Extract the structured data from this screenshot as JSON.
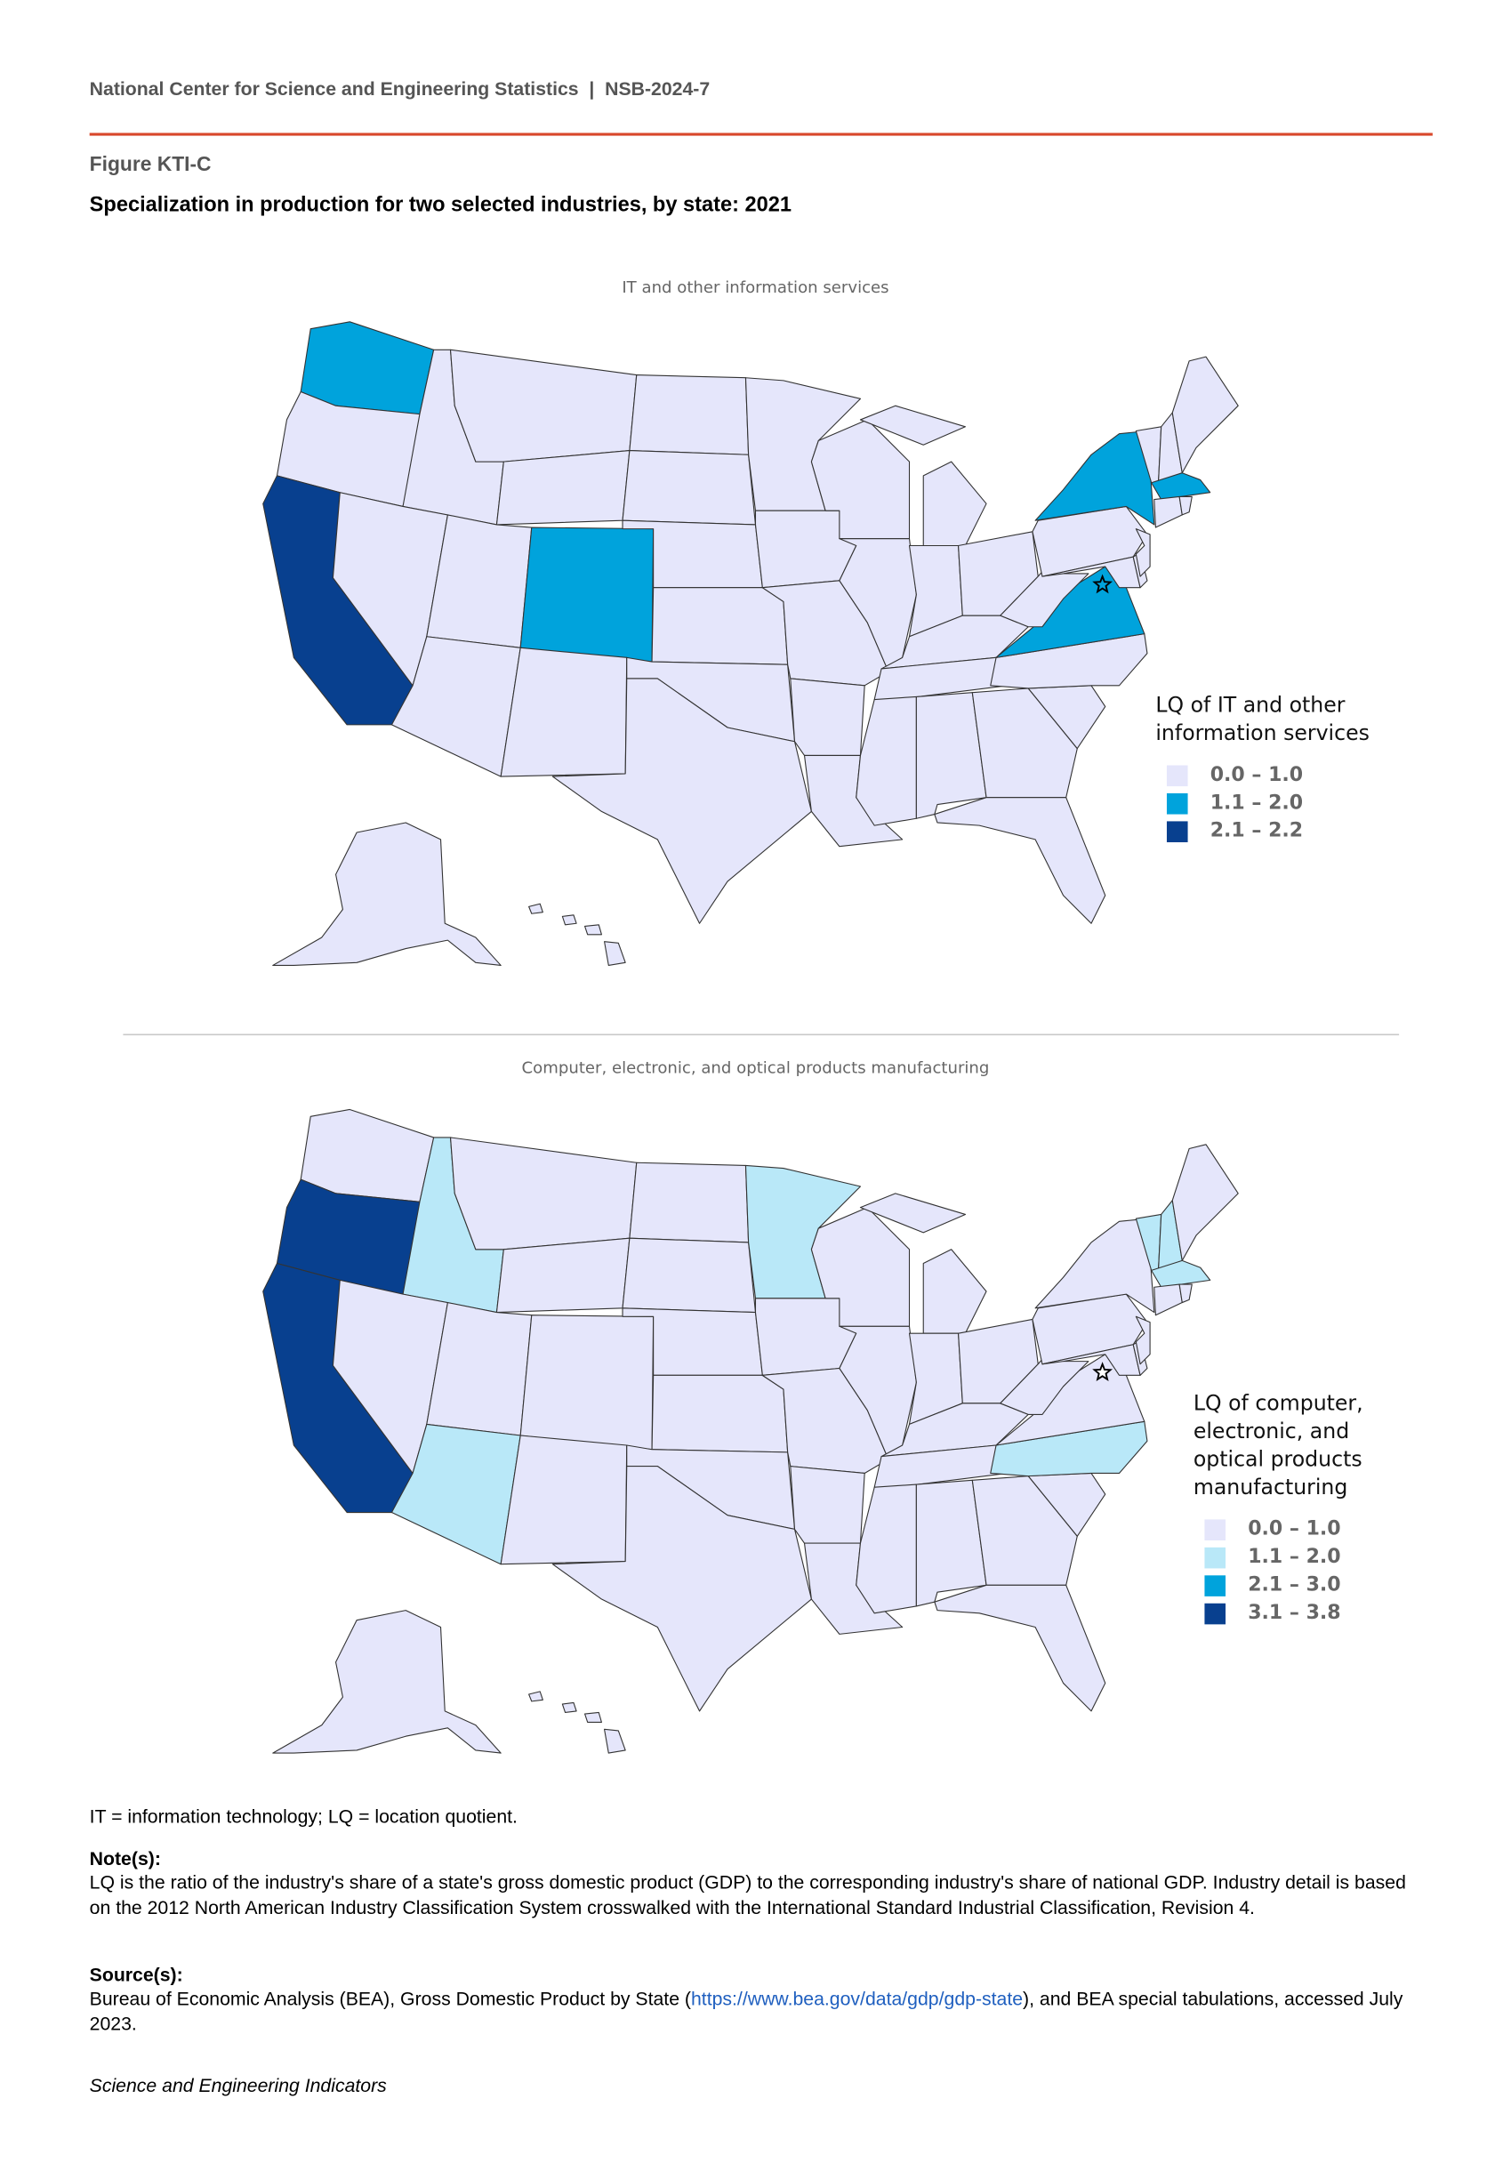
{
  "header": {
    "source_line": "National Center for Science and Engineering Statistics  |  NSB-2024-7"
  },
  "figure": {
    "label": "Figure KTI-C",
    "title": "Specialization in production for two selected industries, by state: 2021"
  },
  "chart_data": [
    {
      "type": "choropleth",
      "title": "IT and other information services",
      "legend_title": "LQ of IT and other information services",
      "legend_placement": "right",
      "classes": [
        {
          "label": "0.0 – 1.0",
          "color": "#e5e6fb"
        },
        {
          "label": "1.1 – 2.0",
          "color": "#00a3dc"
        },
        {
          "label": "2.1 – 2.2",
          "color": "#08408f"
        }
      ],
      "default_class": 0,
      "state_classes": {
        "WA": 1,
        "CO": 1,
        "NY": 1,
        "MA": 1,
        "VA": 1,
        "DC": 1,
        "CA": 2
      }
    },
    {
      "type": "choropleth",
      "title": "Computer, electronic, and optical products manufacturing",
      "legend_title": "LQ of computer, electronic, and optical products manufacturing",
      "legend_placement": "right",
      "classes": [
        {
          "label": "0.0 – 1.0",
          "color": "#e5e6fb"
        },
        {
          "label": "1.1 – 2.0",
          "color": "#b9e8f8"
        },
        {
          "label": "2.1 – 3.0",
          "color": "#00a3dc"
        },
        {
          "label": "3.1 – 3.8",
          "color": "#08408f"
        }
      ],
      "default_class": 0,
      "state_classes": {
        "ID": 1,
        "AZ": 1,
        "MN": 1,
        "VT": 1,
        "NH": 1,
        "MA": 1,
        "NC": 1,
        "OR": 3,
        "CA": 3
      }
    }
  ],
  "footer": {
    "abbrev": "IT = information technology; LQ = location quotient.",
    "note_label": "Note(s):",
    "note_text": "LQ is the ratio of the industry's share of a state's gross domestic product (GDP) to the corresponding industry's share of national GDP. Industry detail is based on the 2012 North American Industry Classification System crosswalked with the International Standard Industrial Classification, Revision 4.",
    "source_label": "Source(s):",
    "source_pre": "Bureau of Economic Analysis (BEA), Gross Domestic Product by State (",
    "source_link": "https://www.bea.gov/data/gdp/gdp-state",
    "source_post": "), and BEA special tabulations, accessed July 2023.",
    "publication": "Science and Engineering Indicators"
  }
}
